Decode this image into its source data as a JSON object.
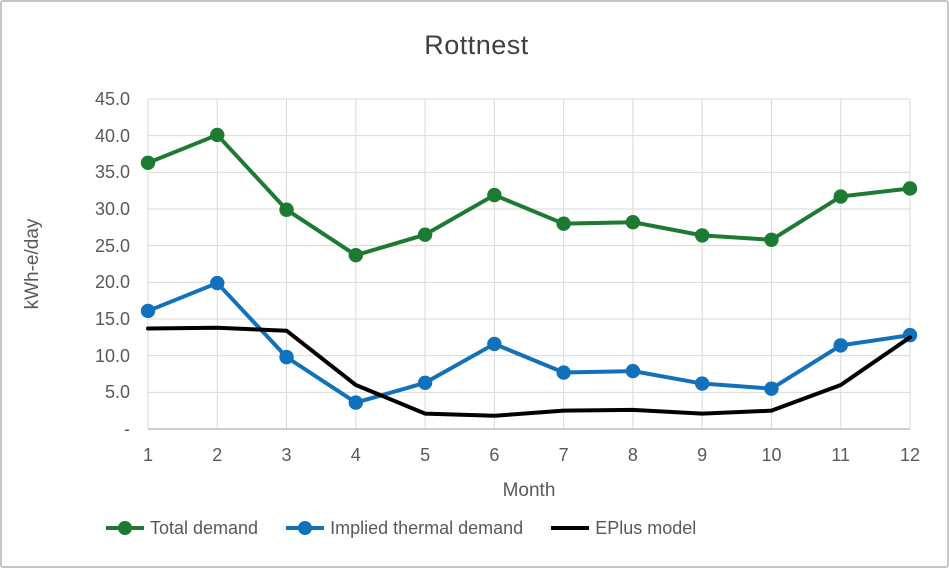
{
  "chart_data": {
    "type": "line",
    "title": "Rottnest",
    "xlabel": "Month",
    "ylabel": "kWh-e/day",
    "categories": [
      1,
      2,
      3,
      4,
      5,
      6,
      7,
      8,
      9,
      10,
      11,
      12
    ],
    "xtick_labels": [
      "1",
      "2",
      "3",
      "4",
      "5",
      "6",
      "7",
      "8",
      "9",
      "10",
      "11",
      "12"
    ],
    "ylim": [
      0,
      45
    ],
    "ytick_step": 5,
    "ytick_labels": [
      "-",
      "5.0",
      "10.0",
      "15.0",
      "20.0",
      "25.0",
      "30.0",
      "35.0",
      "40.0",
      "45.0"
    ],
    "grid": true,
    "legend_position": "bottom",
    "series": [
      {
        "name": "Total demand",
        "color": "#1D7A33",
        "marker": "circle",
        "values": [
          36.3,
          40.1,
          29.9,
          23.7,
          26.5,
          31.9,
          28.0,
          28.2,
          26.4,
          25.8,
          31.7,
          32.8
        ]
      },
      {
        "name": "Implied thermal demand",
        "color": "#1171BA",
        "marker": "circle",
        "values": [
          16.1,
          19.9,
          9.8,
          3.6,
          6.3,
          11.6,
          7.7,
          7.9,
          6.2,
          5.5,
          11.4,
          12.8
        ]
      },
      {
        "name": "EPlus model",
        "color": "#000000",
        "marker": "none",
        "values": [
          13.7,
          13.8,
          13.4,
          6.0,
          2.1,
          1.8,
          2.5,
          2.6,
          2.1,
          2.5,
          6.0,
          12.5
        ]
      }
    ]
  },
  "styles": {
    "title_color": "#404040",
    "axis_text_color": "#595959",
    "gridline_color": "#D9D9D9",
    "axis_line_color": "#BFBFBF",
    "background": "#FFFFFF",
    "frame_border_color": "#C6C6C6"
  }
}
